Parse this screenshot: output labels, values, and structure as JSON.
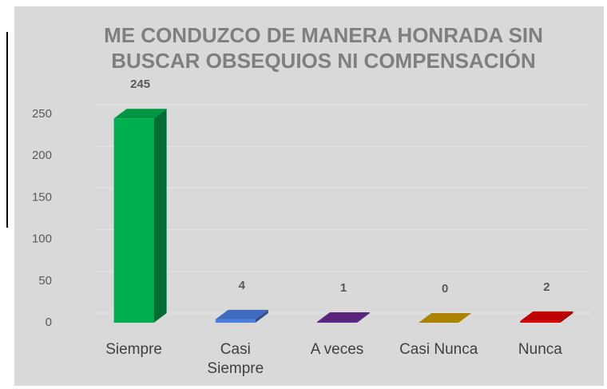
{
  "chart_data": {
    "type": "bar3d",
    "title": "ME CONDUZCO DE MANERA HONRADA SIN BUSCAR OBSEQUIOS NI COMPENSACIÓN",
    "categories": [
      "Siempre",
      "Casi Siempre",
      "A veces",
      "Casi Nunca",
      "Nunca"
    ],
    "values": [
      245,
      4,
      1,
      0,
      2
    ],
    "colors": [
      "#00b050",
      "#4a7fe0",
      "#6a2c91",
      "#c99a00",
      "#e00000"
    ],
    "ylim": [
      0,
      250
    ],
    "yticks": [
      0,
      50,
      100,
      150,
      200,
      250
    ],
    "grid": true
  }
}
